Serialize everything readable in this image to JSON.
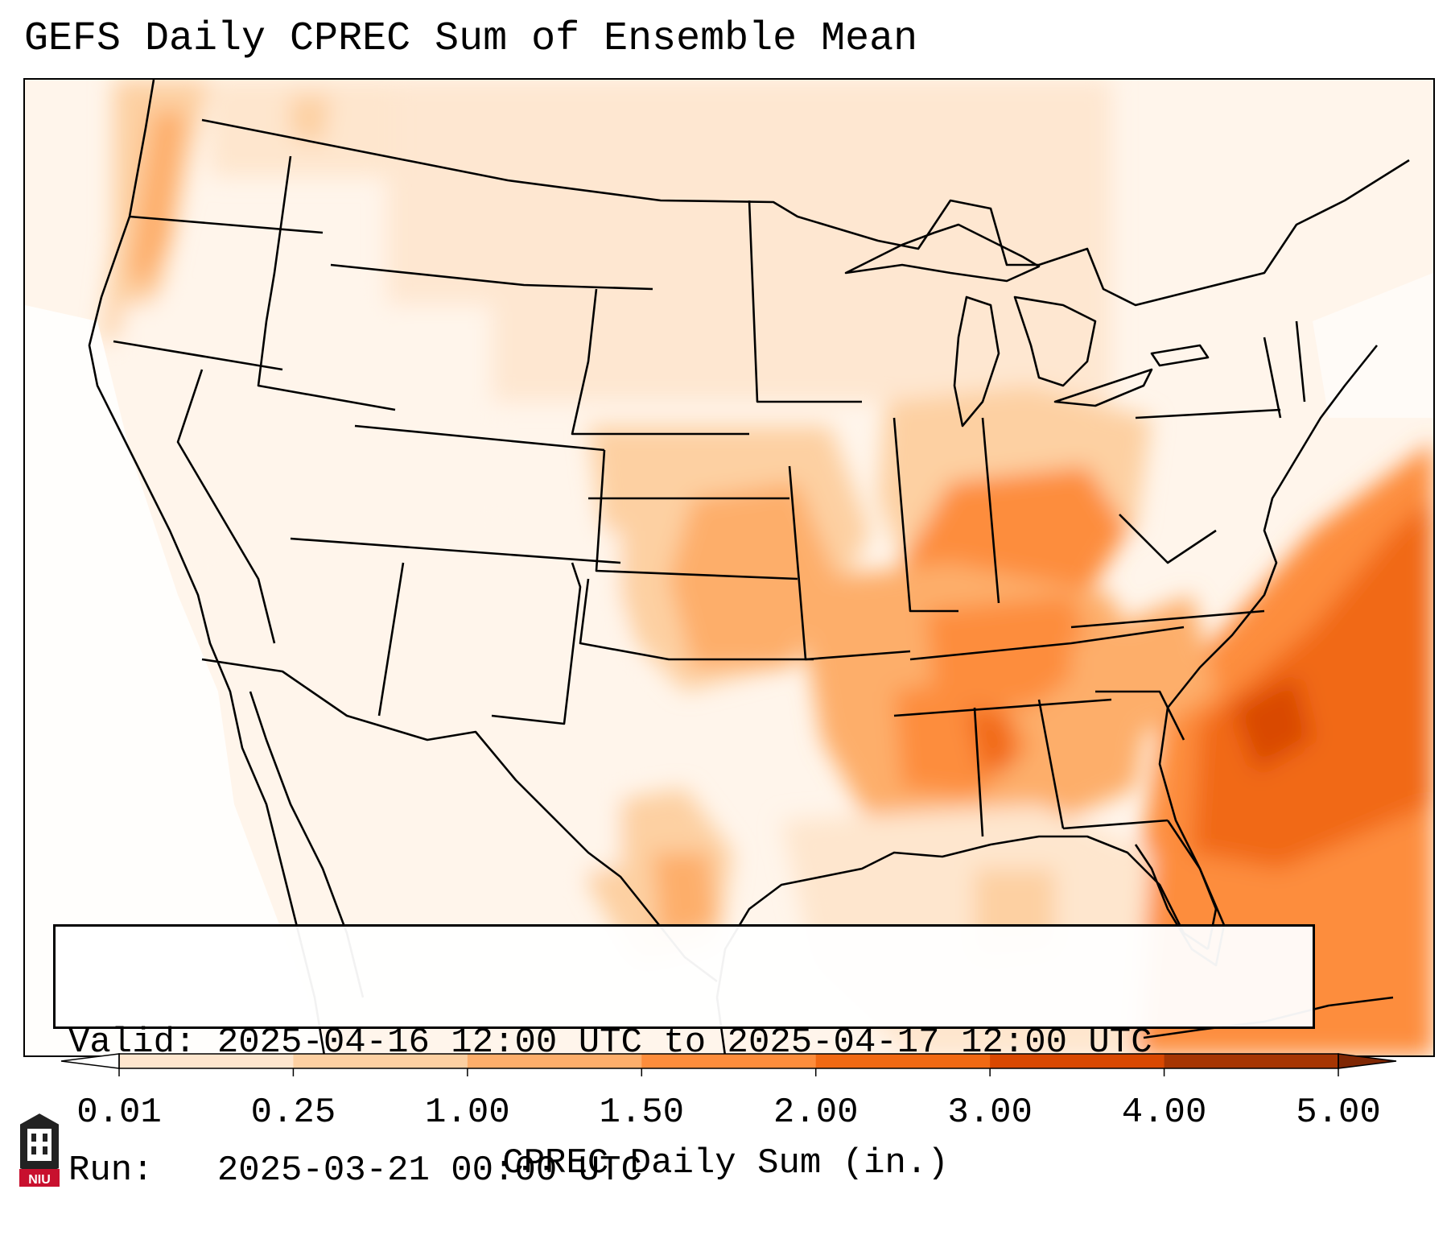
{
  "title": "GEFS Daily CPREC Sum of Ensemble Mean",
  "info": {
    "valid": "Valid: 2025-04-16 12:00 UTC to 2025-04-17 12:00 UTC",
    "run": "Run:   2025-03-21 00:00 UTC"
  },
  "colorbar": {
    "label": "CPREC Daily Sum (in.)",
    "ticks": [
      "0.01",
      "0.25",
      "1.00",
      "1.50",
      "2.00",
      "3.00",
      "4.00",
      "5.00"
    ],
    "colors": [
      "#fff5eb",
      "#fee6ce",
      "#fdd0a2",
      "#fdae6b",
      "#fd8d3c",
      "#f16913",
      "#d94801",
      "#a63603"
    ],
    "under_color": "#ffffff",
    "over_color": "#7f2704"
  },
  "logo": {
    "text": "NIU",
    "color": "#c8102e"
  }
}
